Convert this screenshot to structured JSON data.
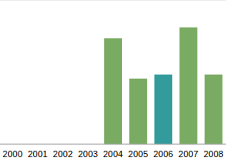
{
  "chart_data": {
    "type": "bar",
    "categories": [
      "2000",
      "2001",
      "2002",
      "2003",
      "2004",
      "2005",
      "2006",
      "2007",
      "2008"
    ],
    "values": [
      null,
      null,
      null,
      null,
      2.94,
      1.82,
      1.93,
      3.24,
      1.93
    ],
    "colors": [
      "#7aab62",
      "#7aab62",
      "#7aab62",
      "#7aab62",
      "#7aab62",
      "#7aab62",
      "#339b9b",
      "#7aab62",
      "#7aab62"
    ],
    "ylim": [
      0,
      4
    ],
    "yticks": [
      0,
      1,
      2,
      3,
      4
    ],
    "grid": true,
    "tick_labels": "x"
  }
}
